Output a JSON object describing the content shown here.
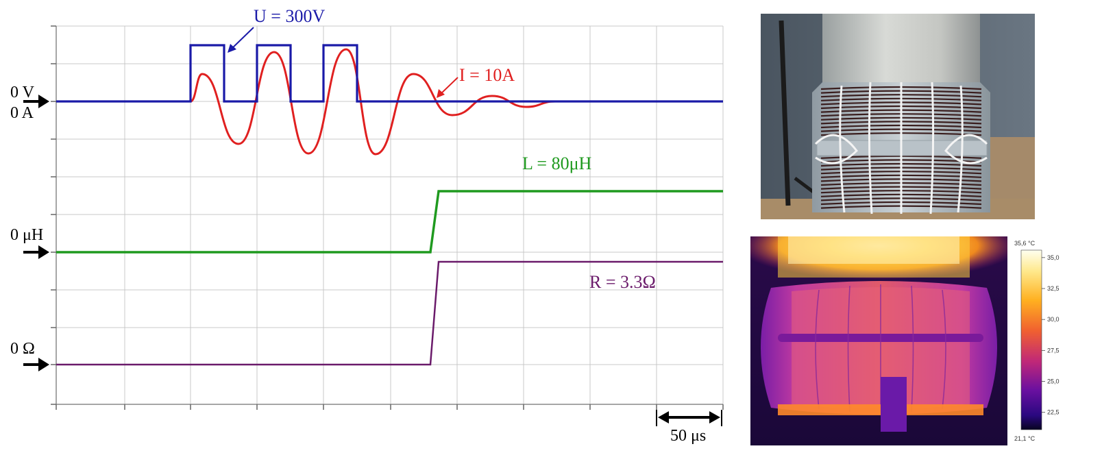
{
  "diagram": {
    "voltage_label": "U = 300V",
    "current_label": "I = 10A",
    "inductance_label": "L = 80μH",
    "resistance_label": "R = 3.3Ω",
    "zero_v": "0 V",
    "zero_a": "0 A",
    "zero_uh": "0 μH",
    "zero_ohm": "0 Ω",
    "time_scale": "50 μs",
    "colors": {
      "voltage": "#1a1aa8",
      "current": "#e02020",
      "inductance": "#1f9a1f",
      "resistance": "#6a1a6a",
      "grid": "#c8c8c8"
    }
  },
  "thermal": {
    "max_temp": "35,6 °C",
    "min_temp": "21,1 °C",
    "scale_ticks": [
      "35,0",
      "32,5",
      "30,0",
      "27,5",
      "25,0",
      "22,5"
    ]
  }
}
